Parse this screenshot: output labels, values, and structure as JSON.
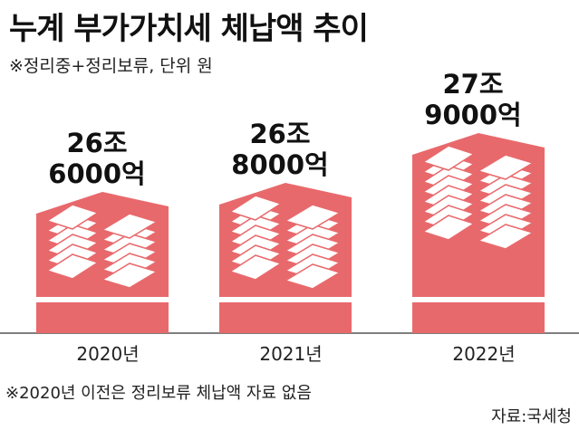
{
  "title": "누계 부가가치세 체납액 추이",
  "subtitle": "※정리중+정리보류, 단위 원",
  "footnote": "※2020년 이전은 정리보류 체납액 자료 없음",
  "source": "자료:국세청",
  "colors": {
    "bar": "#e8696c",
    "bar_dark": "#d9545a",
    "paper": "#ffffff",
    "paper_edge": "#e8696c"
  },
  "chart_data": {
    "type": "bar",
    "title": "누계 부가가치세 체납액 추이",
    "unit": "원",
    "categories": [
      "2020년",
      "2021년",
      "2022년"
    ],
    "values": [
      26600000000000,
      26800000000000,
      27900000000000
    ],
    "value_labels": [
      [
        "26조",
        "6000억"
      ],
      [
        "26조",
        "8000억"
      ],
      [
        "27조",
        "9000억"
      ]
    ]
  }
}
